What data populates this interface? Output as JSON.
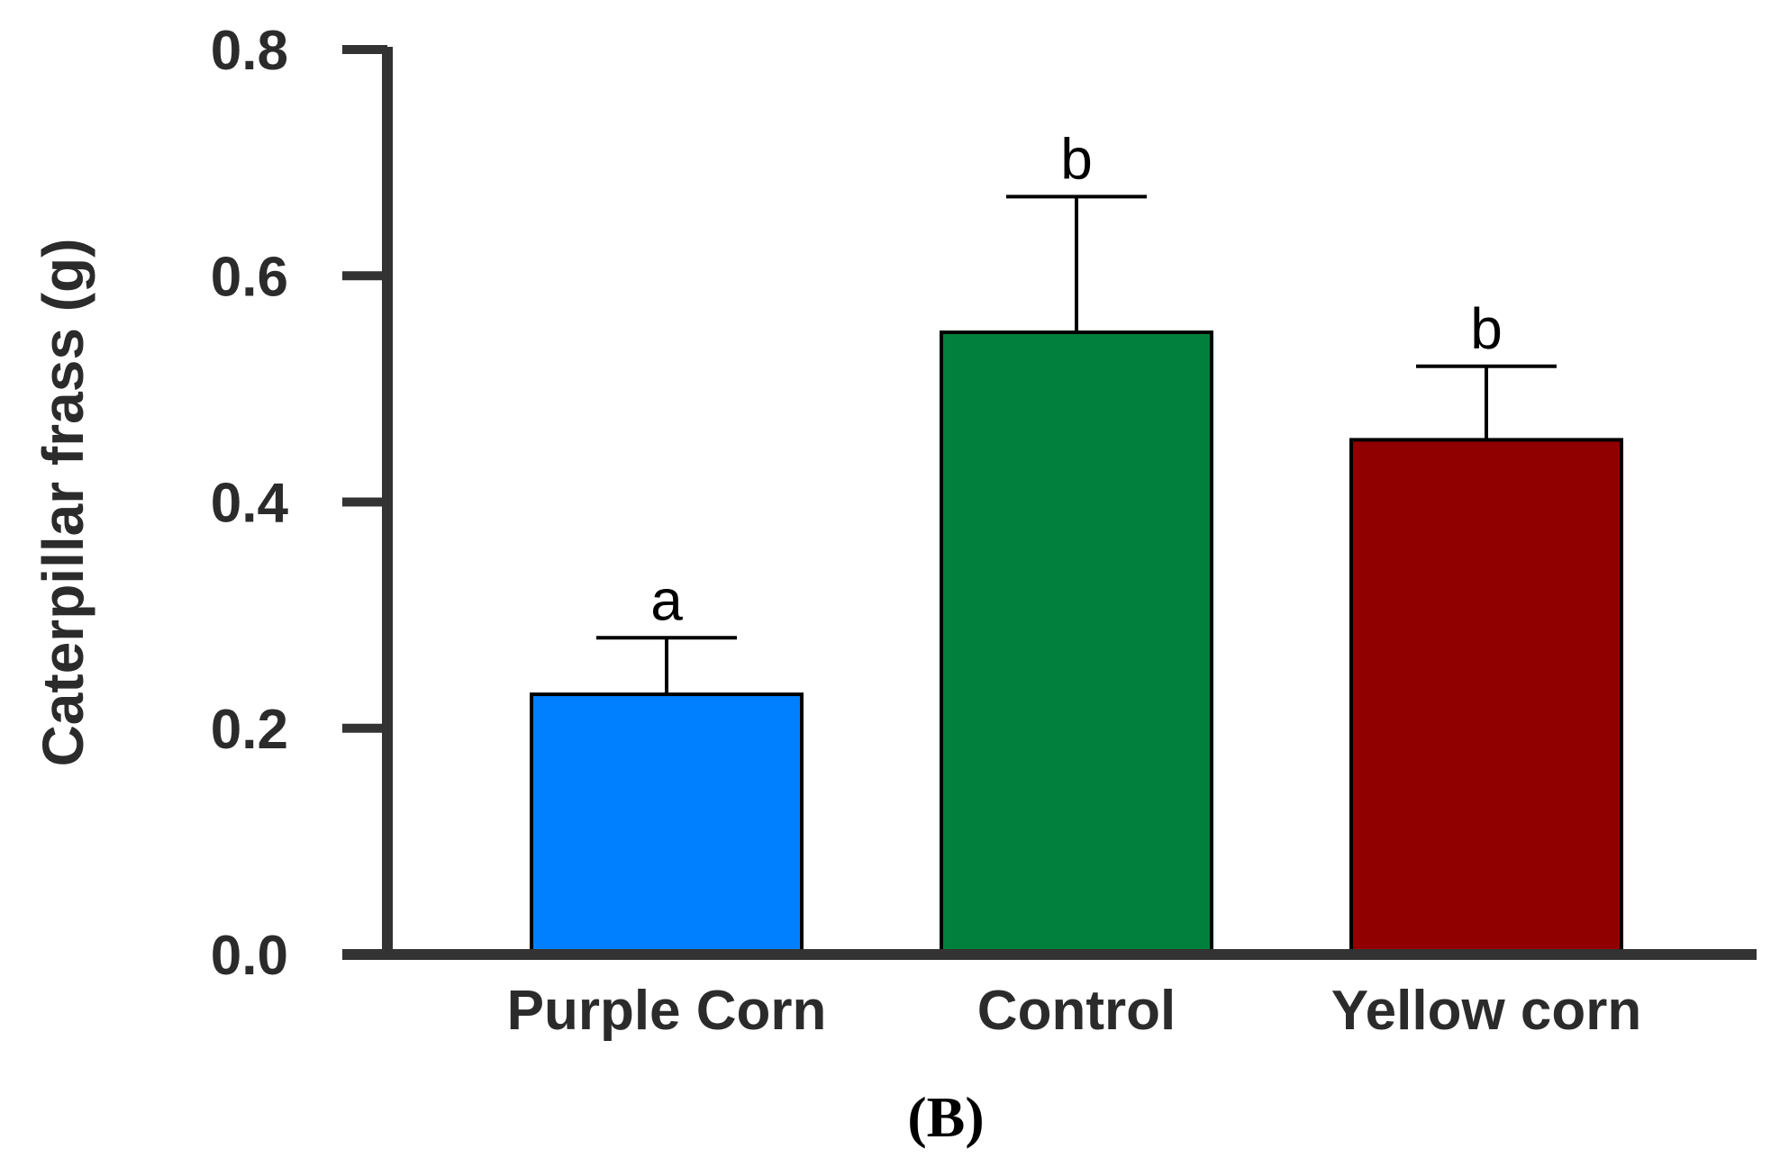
{
  "chart_data": {
    "type": "bar",
    "title": "",
    "xlabel": "",
    "ylabel": "Caterpillar frass (g)",
    "panel_label": "(B)",
    "ylim": [
      0,
      0.8
    ],
    "yticks": [
      "0.0",
      "0.2",
      "0.4",
      "0.6",
      "0.8"
    ],
    "ytick_values": [
      0,
      0.2,
      0.4,
      0.6,
      0.8
    ],
    "categories": [
      "Purple Corn",
      "Control",
      "Yellow corn"
    ],
    "values": [
      0.23,
      0.55,
      0.455
    ],
    "error_upper": [
      0.28,
      0.67,
      0.52
    ],
    "significance": [
      "a",
      "b",
      "b"
    ],
    "colors": [
      "#0080ff",
      "#00803c",
      "#900000"
    ],
    "axis_color": "#333333",
    "grid": false
  }
}
